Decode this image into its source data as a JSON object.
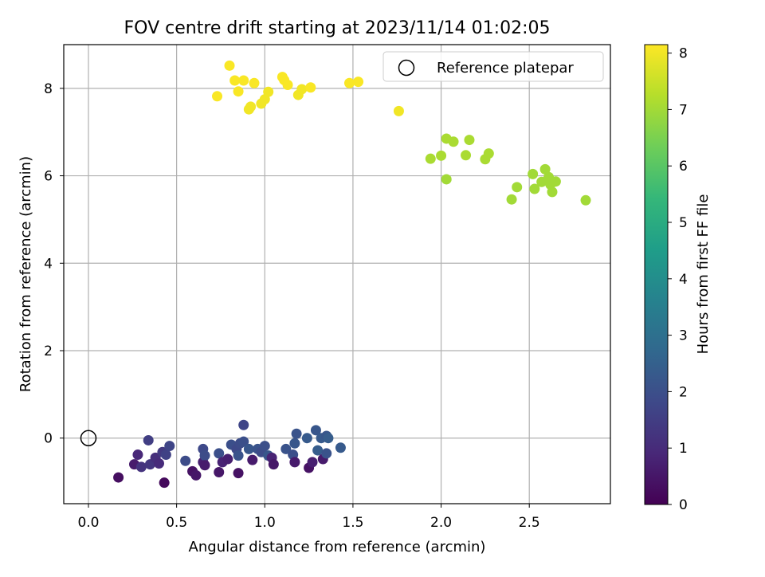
{
  "chart_data": {
    "type": "scatter",
    "title": "FOV centre drift starting at 2023/11/14 01:02:05",
    "xlabel": "Angular distance from reference (arcmin)",
    "ylabel": "Rotation from reference (arcmin)",
    "xlim": [
      -0.14,
      2.96
    ],
    "ylim": [
      -1.5,
      9.0
    ],
    "xticks": [
      0.0,
      0.5,
      1.0,
      1.5,
      2.0,
      2.5
    ],
    "xtick_labels": [
      "0.0",
      "0.5",
      "1.0",
      "1.5",
      "2.0",
      "2.5"
    ],
    "yticks": [
      0,
      2,
      4,
      6,
      8
    ],
    "ytick_labels": [
      "0",
      "2",
      "4",
      "6",
      "8"
    ],
    "grid": true,
    "legend": {
      "placement": "top-right",
      "entries": [
        "Reference platepar"
      ]
    },
    "reference_point": {
      "x": 0.0,
      "y": 0.0,
      "label": "Reference platepar"
    },
    "colorbar": {
      "label": "Hours from first FF file",
      "range": [
        0,
        8.15
      ],
      "ticks": [
        0,
        1,
        2,
        3,
        4,
        5,
        6,
        7,
        8
      ],
      "tick_labels": [
        "0",
        "1",
        "2",
        "3",
        "4",
        "5",
        "6",
        "7",
        "8"
      ],
      "colormap": "viridis",
      "stops": [
        "#440154",
        "#482878",
        "#3e4989",
        "#31688e",
        "#26828e",
        "#1f9e89",
        "#35b779",
        "#6ece58",
        "#b5de2b",
        "#fde725"
      ]
    },
    "points": [
      {
        "x": 0.17,
        "y": -0.9,
        "h": 0.3
      },
      {
        "x": 0.26,
        "y": -0.6,
        "h": 0.6
      },
      {
        "x": 0.28,
        "y": -0.38,
        "h": 0.9
      },
      {
        "x": 0.3,
        "y": -0.66,
        "h": 1.2
      },
      {
        "x": 0.34,
        "y": -0.05,
        "h": 1.5
      },
      {
        "x": 0.35,
        "y": -0.6,
        "h": 1.3
      },
      {
        "x": 0.38,
        "y": -0.45,
        "h": 1.1
      },
      {
        "x": 0.4,
        "y": -0.58,
        "h": 1.0
      },
      {
        "x": 0.42,
        "y": -0.32,
        "h": 1.4
      },
      {
        "x": 0.43,
        "y": -1.02,
        "h": 0.2
      },
      {
        "x": 0.44,
        "y": -0.38,
        "h": 1.6
      },
      {
        "x": 0.46,
        "y": -0.18,
        "h": 1.7
      },
      {
        "x": 0.55,
        "y": -0.52,
        "h": 1.9
      },
      {
        "x": 0.59,
        "y": -0.76,
        "h": 0.4
      },
      {
        "x": 0.61,
        "y": -0.85,
        "h": 0.5
      },
      {
        "x": 0.65,
        "y": -0.55,
        "h": 0.7
      },
      {
        "x": 0.65,
        "y": -0.25,
        "h": 1.8
      },
      {
        "x": 0.66,
        "y": -0.4,
        "h": 1.9
      },
      {
        "x": 0.66,
        "y": -0.62,
        "h": 0.6
      },
      {
        "x": 0.74,
        "y": -0.35,
        "h": 2.0
      },
      {
        "x": 0.74,
        "y": -0.78,
        "h": 0.5
      },
      {
        "x": 0.76,
        "y": -0.55,
        "h": 0.8
      },
      {
        "x": 0.79,
        "y": -0.48,
        "h": 0.7
      },
      {
        "x": 0.81,
        "y": -0.15,
        "h": 2.0
      },
      {
        "x": 0.84,
        "y": -0.25,
        "h": 1.8
      },
      {
        "x": 0.85,
        "y": -0.4,
        "h": 2.1
      },
      {
        "x": 0.85,
        "y": -0.8,
        "h": 0.4
      },
      {
        "x": 0.86,
        "y": -0.12,
        "h": 1.9
      },
      {
        "x": 0.88,
        "y": -0.08,
        "h": 2.0
      },
      {
        "x": 0.88,
        "y": 0.3,
        "h": 1.7
      },
      {
        "x": 0.91,
        "y": -0.25,
        "h": 2.2
      },
      {
        "x": 0.93,
        "y": -0.5,
        "h": 0.6
      },
      {
        "x": 0.96,
        "y": -0.25,
        "h": 2.1
      },
      {
        "x": 0.98,
        "y": -0.32,
        "h": 1.9
      },
      {
        "x": 1.0,
        "y": -0.18,
        "h": 2.0
      },
      {
        "x": 1.02,
        "y": -0.4,
        "h": 2.2
      },
      {
        "x": 1.04,
        "y": -0.45,
        "h": 0.8
      },
      {
        "x": 1.05,
        "y": -0.6,
        "h": 0.5
      },
      {
        "x": 1.12,
        "y": -0.25,
        "h": 2.1
      },
      {
        "x": 1.16,
        "y": -0.38,
        "h": 2.0
      },
      {
        "x": 1.17,
        "y": -0.12,
        "h": 2.2
      },
      {
        "x": 1.17,
        "y": -0.55,
        "h": 0.6
      },
      {
        "x": 1.18,
        "y": 0.1,
        "h": 2.1
      },
      {
        "x": 1.24,
        "y": 0.0,
        "h": 2.3
      },
      {
        "x": 1.25,
        "y": -0.68,
        "h": 0.4
      },
      {
        "x": 1.27,
        "y": -0.55,
        "h": 0.7
      },
      {
        "x": 1.29,
        "y": 0.18,
        "h": 2.2
      },
      {
        "x": 1.3,
        "y": -0.28,
        "h": 2.4
      },
      {
        "x": 1.32,
        "y": 0.0,
        "h": 2.3
      },
      {
        "x": 1.33,
        "y": -0.48,
        "h": 0.6
      },
      {
        "x": 1.35,
        "y": 0.05,
        "h": 2.2
      },
      {
        "x": 1.35,
        "y": -0.35,
        "h": 2.1
      },
      {
        "x": 1.36,
        "y": 0.0,
        "h": 2.4
      },
      {
        "x": 1.43,
        "y": -0.22,
        "h": 2.3
      },
      {
        "x": 0.73,
        "y": 7.82,
        "h": 8.1
      },
      {
        "x": 0.8,
        "y": 8.52,
        "h": 8.1
      },
      {
        "x": 0.83,
        "y": 8.18,
        "h": 8.1
      },
      {
        "x": 0.85,
        "y": 7.93,
        "h": 8.1
      },
      {
        "x": 0.88,
        "y": 8.18,
        "h": 8.1
      },
      {
        "x": 0.91,
        "y": 7.52,
        "h": 8.0
      },
      {
        "x": 0.92,
        "y": 7.58,
        "h": 8.0
      },
      {
        "x": 0.94,
        "y": 8.12,
        "h": 8.1
      },
      {
        "x": 0.98,
        "y": 7.65,
        "h": 8.0
      },
      {
        "x": 1.0,
        "y": 7.75,
        "h": 8.0
      },
      {
        "x": 1.02,
        "y": 7.92,
        "h": 8.0
      },
      {
        "x": 1.1,
        "y": 8.26,
        "h": 8.1
      },
      {
        "x": 1.11,
        "y": 8.19,
        "h": 8.1
      },
      {
        "x": 1.13,
        "y": 8.08,
        "h": 8.1
      },
      {
        "x": 1.19,
        "y": 7.85,
        "h": 8.0
      },
      {
        "x": 1.21,
        "y": 7.98,
        "h": 8.0
      },
      {
        "x": 1.26,
        "y": 8.02,
        "h": 8.1
      },
      {
        "x": 1.48,
        "y": 8.12,
        "h": 8.1
      },
      {
        "x": 1.53,
        "y": 8.15,
        "h": 8.1
      },
      {
        "x": 1.76,
        "y": 7.48,
        "h": 8.0
      },
      {
        "x": 1.94,
        "y": 6.39,
        "h": 7.1
      },
      {
        "x": 2.0,
        "y": 6.46,
        "h": 7.1
      },
      {
        "x": 2.03,
        "y": 6.85,
        "h": 7.1
      },
      {
        "x": 2.03,
        "y": 5.92,
        "h": 7.0
      },
      {
        "x": 2.07,
        "y": 6.78,
        "h": 7.1
      },
      {
        "x": 2.14,
        "y": 6.47,
        "h": 7.1
      },
      {
        "x": 2.16,
        "y": 6.82,
        "h": 7.1
      },
      {
        "x": 2.25,
        "y": 6.38,
        "h": 7.1
      },
      {
        "x": 2.27,
        "y": 6.51,
        "h": 7.1
      },
      {
        "x": 2.4,
        "y": 5.46,
        "h": 7.0
      },
      {
        "x": 2.43,
        "y": 5.74,
        "h": 7.0
      },
      {
        "x": 2.52,
        "y": 6.04,
        "h": 7.0
      },
      {
        "x": 2.53,
        "y": 5.7,
        "h": 7.0
      },
      {
        "x": 2.57,
        "y": 5.86,
        "h": 7.0
      },
      {
        "x": 2.59,
        "y": 6.15,
        "h": 7.0
      },
      {
        "x": 2.61,
        "y": 5.97,
        "h": 7.0
      },
      {
        "x": 2.62,
        "y": 5.8,
        "h": 7.0
      },
      {
        "x": 2.63,
        "y": 5.63,
        "h": 7.0
      },
      {
        "x": 2.65,
        "y": 5.87,
        "h": 7.0
      },
      {
        "x": 2.82,
        "y": 5.44,
        "h": 7.0
      }
    ]
  }
}
